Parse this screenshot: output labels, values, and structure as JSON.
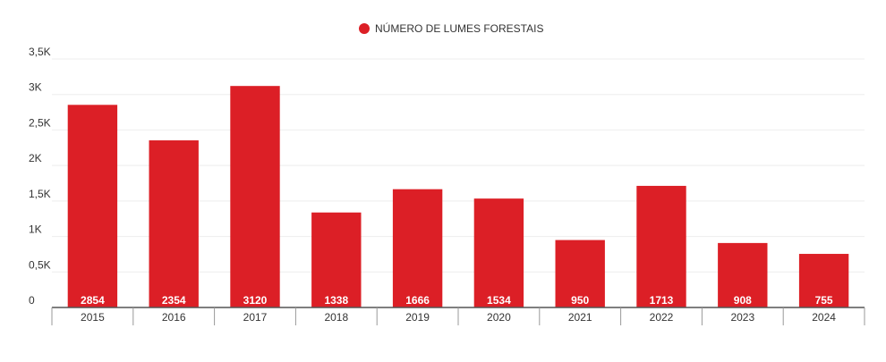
{
  "chart_data": {
    "type": "bar",
    "legend": {
      "label": "NÚMERO DE LUMES FORESTAIS",
      "position": "top-center"
    },
    "categories": [
      "2015",
      "2016",
      "2017",
      "2018",
      "2019",
      "2020",
      "2021",
      "2022",
      "2023",
      "2024"
    ],
    "series": [
      {
        "name": "NÚMERO DE LUMES FORESTAIS",
        "values": [
          2854,
          2354,
          3120,
          1338,
          1666,
          1534,
          950,
          1713,
          908,
          755
        ],
        "data_labels": [
          "2854",
          "2354",
          "3120",
          "1338",
          "1666",
          "1534",
          "950",
          "1713",
          "908",
          "755"
        ]
      }
    ],
    "y_ticks": [
      {
        "value": 0,
        "label": "0"
      },
      {
        "value": 500,
        "label": "0,5K"
      },
      {
        "value": 1000,
        "label": "1K"
      },
      {
        "value": 1500,
        "label": "1,5K"
      },
      {
        "value": 2000,
        "label": "2K"
      },
      {
        "value": 2500,
        "label": "2,5K"
      },
      {
        "value": 3000,
        "label": "3K"
      },
      {
        "value": 3500,
        "label": "3,5K"
      }
    ],
    "ylim": [
      0,
      3500
    ],
    "grid": true
  },
  "colors": {
    "bar": "#dc1f26",
    "grid": "#eeeeee",
    "axis": "#555555",
    "text": "#333333",
    "label_on_bar": "#ffffff"
  }
}
